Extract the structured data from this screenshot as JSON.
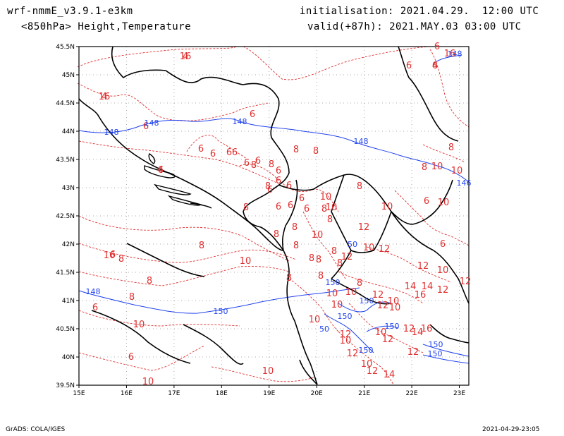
{
  "header": {
    "model": "wrf-nmmE_v3.9.1-e3km",
    "field": "<850hPa> Height,Temperature",
    "init": "initialisation: 2021.04.29.  12:00 UTC",
    "valid": "valid(+87h): 2021.MAY.03 03:00 UTC"
  },
  "axes": {
    "lon_ticks": [
      "15E",
      "16E",
      "17E",
      "18E",
      "19E",
      "20E",
      "21E",
      "22E",
      "23E"
    ],
    "lat_ticks": [
      "45.5N",
      "45N",
      "44.5N",
      "44N",
      "43.5N",
      "43N",
      "42.5N",
      "42N",
      "41.5N",
      "41N",
      "40.5N",
      "40N",
      "39.5N"
    ]
  },
  "colors": {
    "height": "#2244ee",
    "temperature": "#e03030",
    "border": "#000000",
    "grid": "#aaaaaa"
  },
  "contour_labels": {
    "height": [
      "148",
      "148",
      "148",
      "148",
      "148",
      "146",
      "148",
      "150",
      "150",
      "150",
      "150",
      "150",
      "150",
      "150",
      "150",
      "50",
      "50"
    ],
    "temperature": [
      "4",
      "4",
      "4",
      "6",
      "6",
      "6",
      "6",
      "6",
      "6",
      "6",
      "6",
      "6",
      "6",
      "6",
      "6",
      "6",
      "6",
      "6",
      "6",
      "6",
      "6",
      "6",
      "6",
      "6",
      "6",
      "6",
      "6",
      "8",
      "8",
      "8",
      "8",
      "8",
      "8",
      "8",
      "8",
      "8",
      "8",
      "8",
      "8",
      "8",
      "8",
      "8",
      "8",
      "8",
      "8",
      "8",
      "8",
      "8",
      "8",
      "8",
      "8",
      "8",
      "10",
      "10",
      "10",
      "10",
      "10",
      "10",
      "10",
      "10",
      "10",
      "10",
      "10",
      "10",
      "10",
      "10",
      "10",
      "10",
      "10",
      "10",
      "10",
      "10",
      "10",
      "10",
      "12",
      "12",
      "12",
      "12",
      "12",
      "12",
      "12",
      "12",
      "12",
      "12",
      "12",
      "12",
      "12",
      "12",
      "14",
      "14",
      "14",
      "14",
      "16",
      "16",
      "16",
      "16",
      "16",
      "16",
      "6",
      "4"
    ]
  },
  "footer": {
    "left": "GrADS: COLA/IGES",
    "right": "2021-04-29-23:05"
  }
}
